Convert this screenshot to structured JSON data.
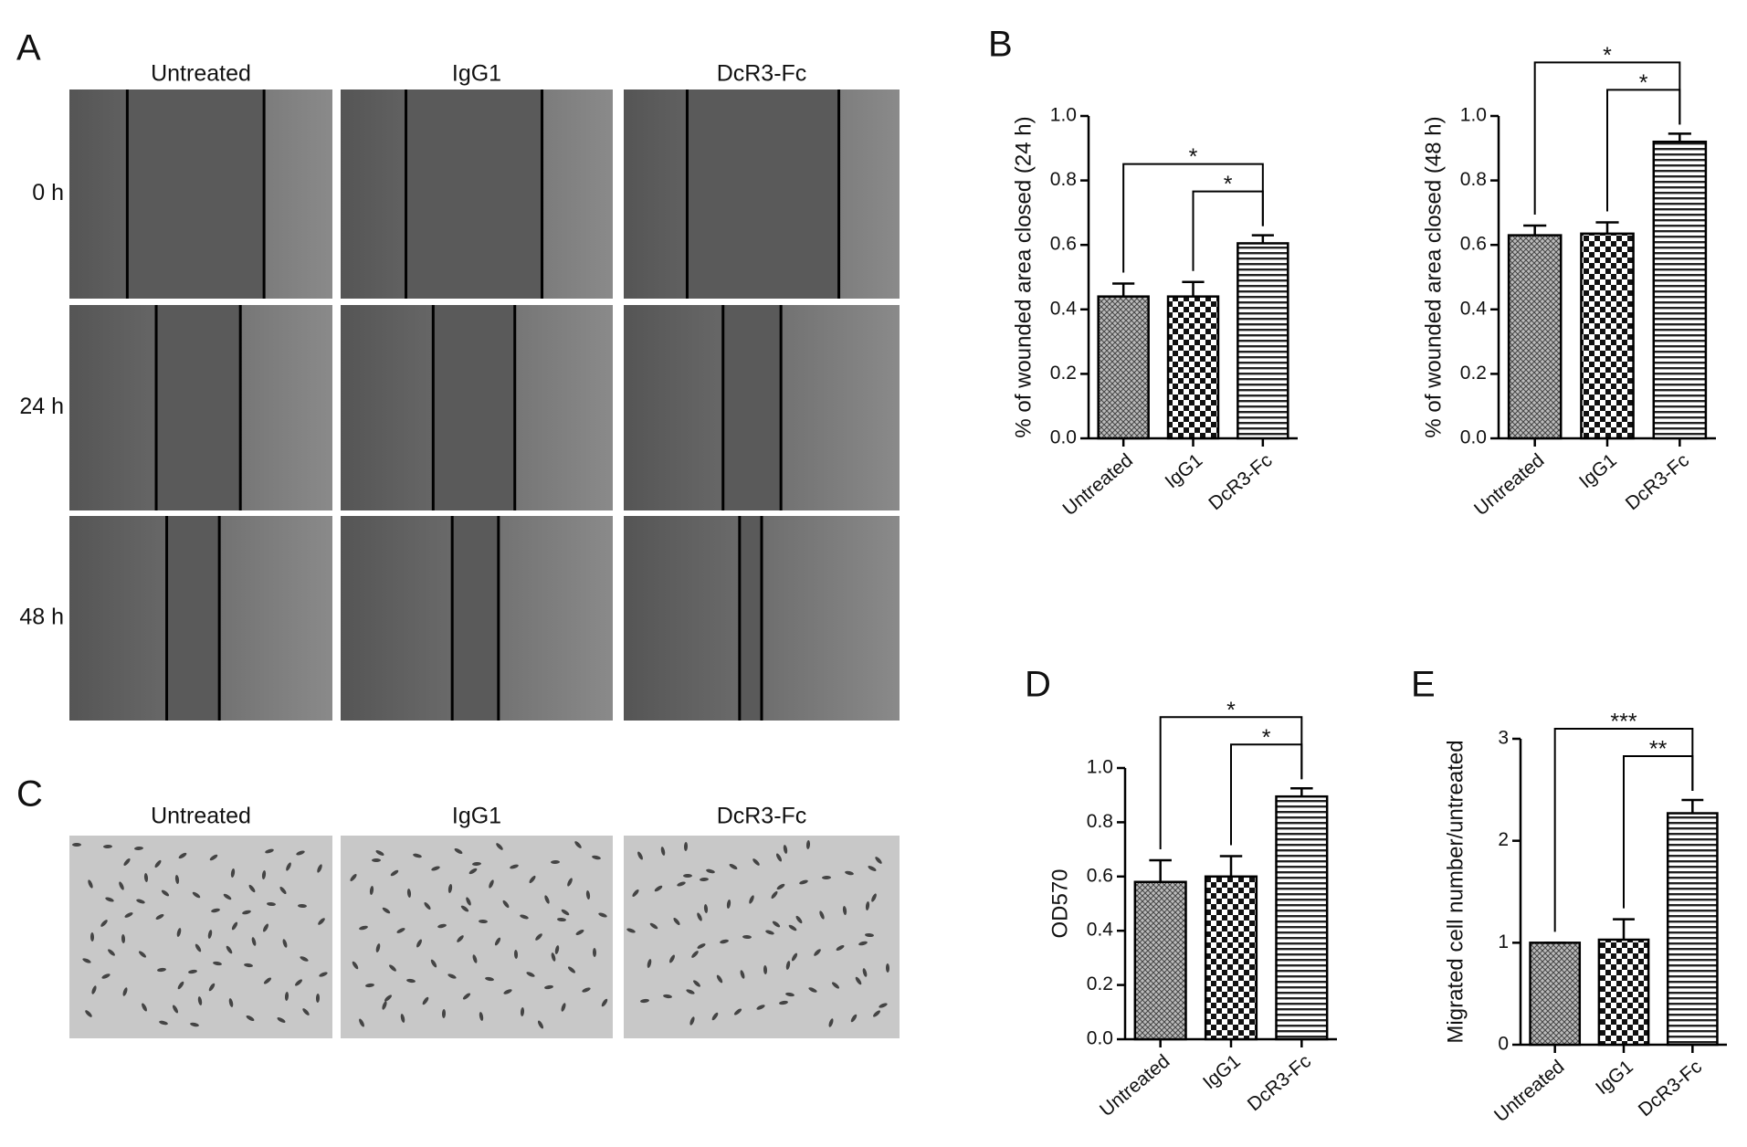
{
  "panel_labels": {
    "a": "A",
    "b": "B",
    "c": "C",
    "d": "D",
    "e": "E"
  },
  "panel_a": {
    "columns": [
      "Untreated",
      "IgG1",
      "DcR3-Fc"
    ],
    "rows": [
      "0 h",
      "24 h",
      "48 h"
    ]
  },
  "panel_c": {
    "columns": [
      "Untreated",
      "IgG1",
      "DcR3-Fc"
    ]
  },
  "chart_data": [
    {
      "type": "bar",
      "ylabel": "% of wounded area closed (24 h)",
      "categories": [
        "Untreated",
        "IgG1",
        "DcR3-Fc"
      ],
      "values": [
        0.44,
        0.44,
        0.605
      ],
      "errors": [
        0.04,
        0.045,
        0.025
      ],
      "fills": [
        "crosshatch",
        "checker",
        "hstripe"
      ],
      "ylim": [
        0,
        1.0
      ],
      "yticks": [
        {
          "value": 0,
          "label": "0.0"
        },
        0.2,
        0.4,
        0.6,
        0.8,
        {
          "value": 1,
          "label": "1.0"
        }
      ],
      "significance": [
        "*",
        "*"
      ]
    },
    {
      "type": "bar",
      "ylabel": "% of wounded area closed (48 h)",
      "categories": [
        "Untreated",
        "IgG1",
        "DcR3-Fc"
      ],
      "values": [
        0.63,
        0.635,
        0.92
      ],
      "errors": [
        0.03,
        0.035,
        0.025
      ],
      "fills": [
        "crosshatch",
        "checker",
        "hstripe"
      ],
      "ylim": [
        0,
        1.0
      ],
      "yticks": [
        {
          "value": 0,
          "label": "0.0"
        },
        0.2,
        0.4,
        0.6,
        0.8,
        {
          "value": 1,
          "label": "1.0"
        }
      ],
      "significance": [
        "*",
        "*"
      ]
    },
    {
      "type": "bar",
      "ylabel": "OD570",
      "categories": [
        "Untreated",
        "IgG1",
        "DcR3-Fc"
      ],
      "values": [
        0.58,
        0.6,
        0.895
      ],
      "errors": [
        0.08,
        0.075,
        0.03
      ],
      "fills": [
        "crosshatch",
        "checker",
        "hstripe"
      ],
      "ylim": [
        0,
        1.0
      ],
      "yticks": [
        {
          "value": 0,
          "label": "0.0"
        },
        0.2,
        0.4,
        0.6,
        0.8,
        {
          "value": 1,
          "label": "1.0"
        }
      ],
      "significance": [
        "*",
        "*"
      ]
    },
    {
      "type": "bar",
      "ylabel": "Migrated cell number/untreated",
      "categories": [
        "Untreated",
        "IgG1",
        "DcR3-Fc"
      ],
      "values": [
        1.0,
        1.03,
        2.27
      ],
      "errors": [
        0,
        0.2,
        0.13
      ],
      "fills": [
        "crosshatch",
        "checker",
        "hstripe"
      ],
      "ylim": [
        0,
        3
      ],
      "yticks": [
        0,
        1,
        2,
        3
      ],
      "significance": [
        "***",
        "**"
      ]
    }
  ]
}
